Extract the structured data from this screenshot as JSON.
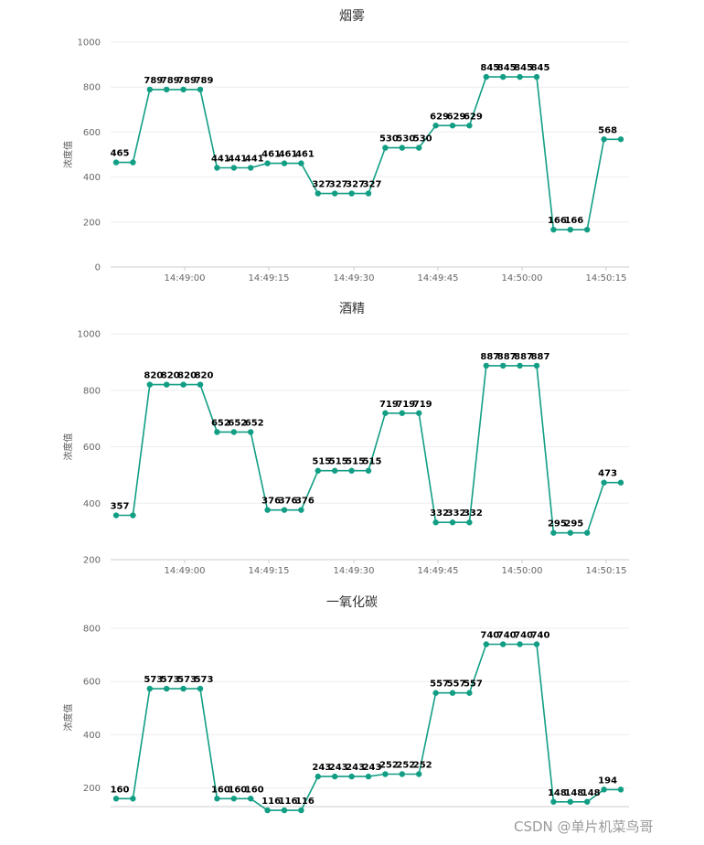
{
  "series_color": "#119e84",
  "watermark": "CSDN @单片机菜鸟哥",
  "chart_data": [
    {
      "type": "line",
      "title": "烟雾",
      "ylabel": "浓度值",
      "ylim": [
        0,
        1000
      ],
      "yticks": [
        0,
        200,
        400,
        600,
        800,
        1000
      ],
      "xticks": [
        "14:49:00",
        "14:49:15",
        "14:49:30",
        "14:49:45",
        "14:50:00",
        "14:50:15"
      ],
      "values": [
        465,
        465,
        789,
        789,
        789,
        789,
        441,
        441,
        441,
        461,
        461,
        461,
        327,
        327,
        327,
        327,
        530,
        530,
        530,
        629,
        629,
        629,
        845,
        845,
        845,
        845,
        166,
        166,
        166,
        568,
        568
      ],
      "labels": [
        "465",
        "",
        "789",
        "789",
        "789",
        "789",
        "441",
        "441",
        "441",
        "461",
        "461",
        "461",
        "327",
        "327",
        "327",
        "327",
        "530",
        "530",
        "530",
        "629",
        "629",
        "629",
        "845",
        "845",
        "845",
        "845",
        "166",
        "166",
        "",
        "568",
        ""
      ]
    },
    {
      "type": "line",
      "title": "酒精",
      "ylabel": "浓度值",
      "ylim": [
        200,
        1000
      ],
      "yticks": [
        200,
        400,
        600,
        800,
        1000
      ],
      "xticks": [
        "14:49:00",
        "14:49:15",
        "14:49:30",
        "14:49:45",
        "14:50:00",
        "14:50:15"
      ],
      "values": [
        357,
        357,
        820,
        820,
        820,
        820,
        652,
        652,
        652,
        376,
        376,
        376,
        515,
        515,
        515,
        515,
        719,
        719,
        719,
        332,
        332,
        332,
        887,
        887,
        887,
        887,
        295,
        295,
        295,
        473,
        473
      ],
      "labels": [
        "357",
        "",
        "820",
        "820",
        "820",
        "820",
        "652",
        "652",
        "652",
        "376",
        "376",
        "376",
        "515",
        "515",
        "515",
        "515",
        "719",
        "719",
        "719",
        "332",
        "332",
        "332",
        "887",
        "887",
        "887",
        "887",
        "295",
        "295",
        "",
        "473",
        ""
      ]
    },
    {
      "type": "line",
      "title": "一氧化碳",
      "ylabel": "浓度值",
      "ylim": [
        130,
        800
      ],
      "yticks": [
        200,
        400,
        600,
        800
      ],
      "xticks": [],
      "values": [
        160,
        160,
        573,
        573,
        573,
        573,
        160,
        160,
        160,
        116,
        116,
        116,
        243,
        243,
        243,
        243,
        252,
        252,
        252,
        557,
        557,
        557,
        740,
        740,
        740,
        740,
        148,
        148,
        148,
        194,
        194
      ],
      "labels": [
        "160",
        "",
        "573",
        "573",
        "573",
        "573",
        "160",
        "160",
        "160",
        "116",
        "116",
        "116",
        "243",
        "243",
        "243",
        "243",
        "252",
        "252",
        "252",
        "557",
        "557",
        "557",
        "740",
        "740",
        "740",
        "740",
        "148",
        "148",
        "148",
        "194",
        ""
      ]
    }
  ]
}
